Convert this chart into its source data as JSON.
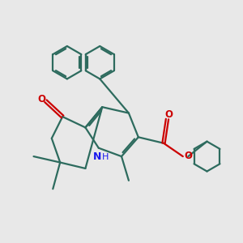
{
  "bg_color": "#e8e8e8",
  "bond_color": "#2d6b5e",
  "N_color": "#1a1aee",
  "O_color": "#cc0000",
  "linewidth": 1.6,
  "xlim": [
    0,
    10
  ],
  "ylim": [
    0,
    10
  ]
}
